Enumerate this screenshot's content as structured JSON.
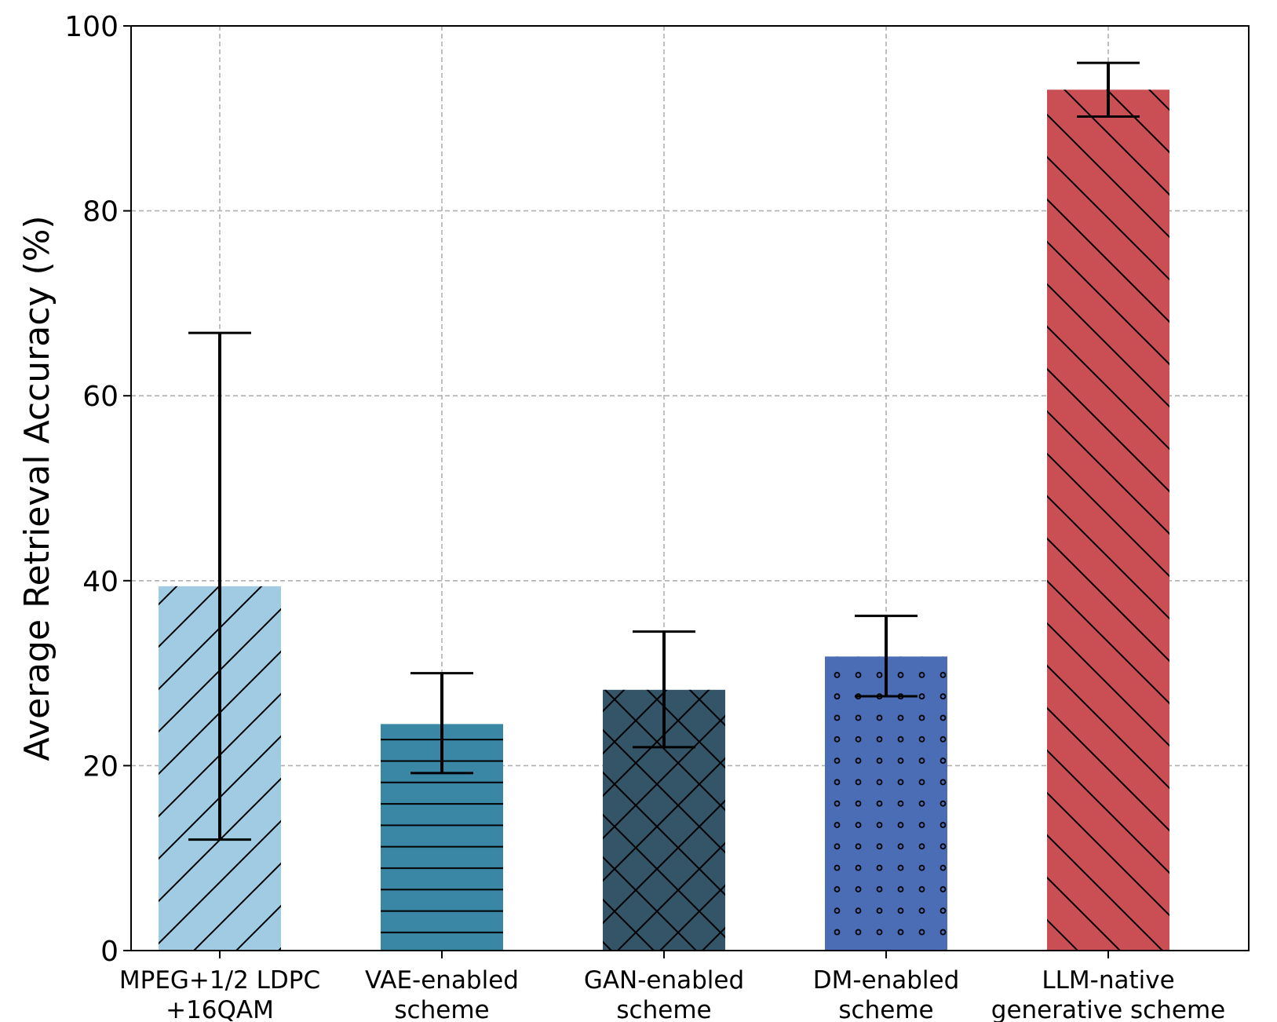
{
  "chart_data": {
    "type": "bar",
    "title": "",
    "xlabel": "",
    "ylabel": "Average Retrieval Accuracy (%)",
    "ylim": [
      0,
      100
    ],
    "yticks": [
      "0",
      "20",
      "40",
      "60",
      "80",
      "100"
    ],
    "grid": true,
    "categories": [
      {
        "line1": "MPEG+1/2 LDPC",
        "line2": "+16QAM"
      },
      {
        "line1": "VAE-enabled",
        "line2": "scheme"
      },
      {
        "line1": "GAN-enabled",
        "line2": "scheme"
      },
      {
        "line1": "DM-enabled",
        "line2": "scheme"
      },
      {
        "line1": "LLM-native",
        "line2": "generative scheme"
      }
    ],
    "values": [
      39.4,
      24.5,
      28.2,
      31.8,
      93.1
    ],
    "error_low": [
      12.0,
      19.2,
      22.0,
      27.5,
      90.2
    ],
    "error_high": [
      66.8,
      30.0,
      34.5,
      36.2,
      96.0
    ],
    "colors": [
      "#a1cbe3",
      "#3a87a5",
      "#345468",
      "#4a6db6",
      "#c94f55"
    ],
    "hatches": [
      "diag-up",
      "horizontal",
      "cross",
      "dots",
      "diag-down"
    ]
  }
}
